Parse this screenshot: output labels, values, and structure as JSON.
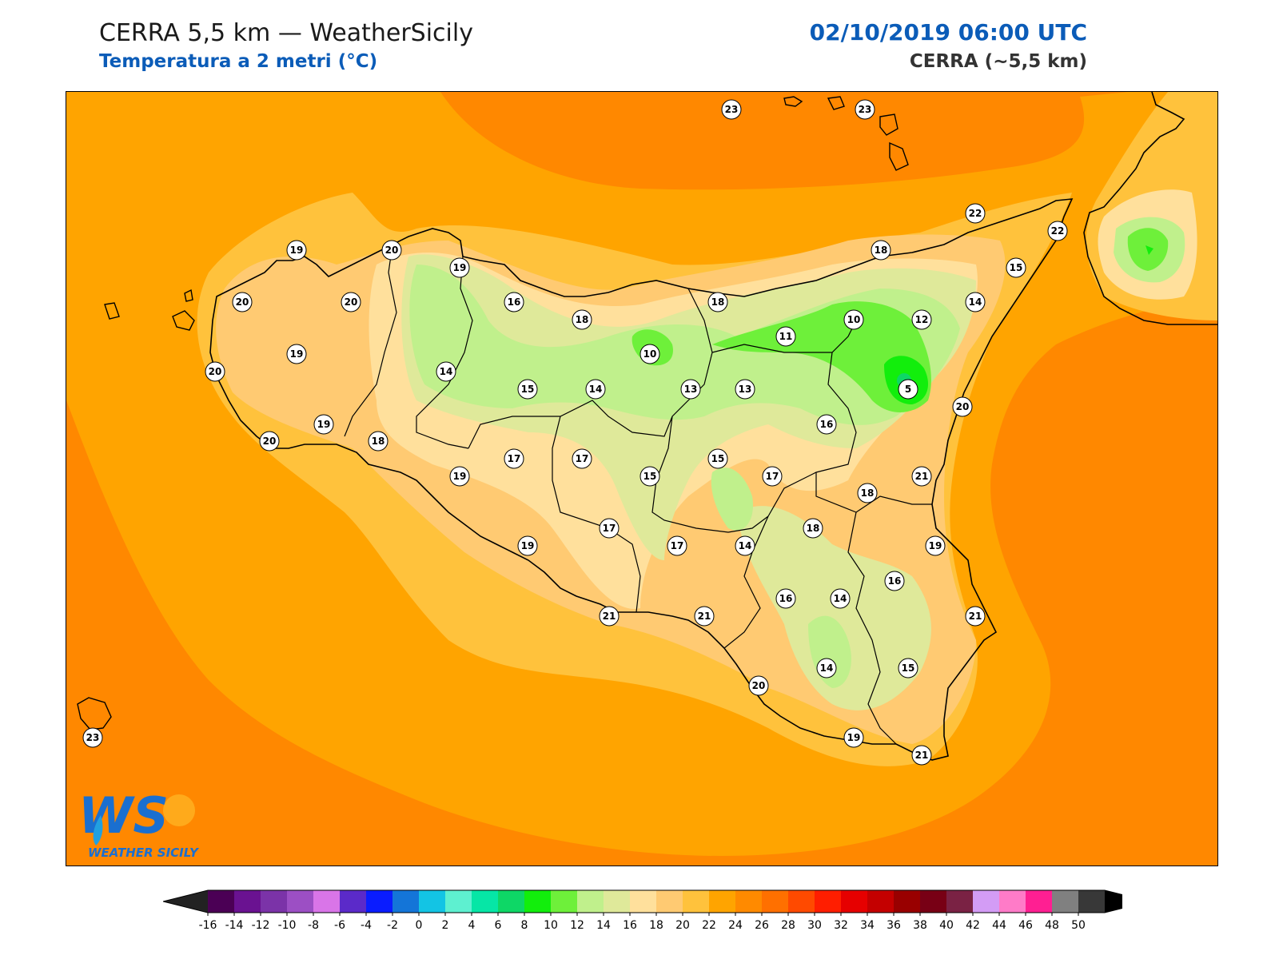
{
  "header": {
    "title_left": "CERRA 5,5 km — WeatherSicily",
    "subtitle_left": "Temperatura a 2 metri (°C)",
    "title_right": "02/10/2019 06:00 UTC",
    "subtitle_right": "CERRA (~5,5 km)"
  },
  "logo": {
    "initials": "WS",
    "text": "WEATHER SICILY"
  },
  "stations": [
    {
      "v": "23"
    },
    {
      "v": "23"
    },
    {
      "v": "22"
    },
    {
      "v": "22"
    },
    {
      "v": "18"
    },
    {
      "v": "15"
    },
    {
      "v": "14"
    },
    {
      "v": "12"
    },
    {
      "v": "10"
    },
    {
      "v": "11"
    },
    {
      "v": "5"
    },
    {
      "v": "20"
    },
    {
      "v": "16"
    },
    {
      "v": "21"
    },
    {
      "v": "18"
    },
    {
      "v": "18"
    },
    {
      "v": "19"
    },
    {
      "v": "16"
    },
    {
      "v": "14"
    },
    {
      "v": "21"
    },
    {
      "v": "15"
    },
    {
      "v": "14"
    },
    {
      "v": "19"
    },
    {
      "v": "21"
    },
    {
      "v": "20"
    },
    {
      "v": "16"
    },
    {
      "v": "14"
    },
    {
      "v": "17"
    },
    {
      "v": "18"
    },
    {
      "v": "15"
    },
    {
      "v": "13"
    },
    {
      "v": "13"
    },
    {
      "v": "10"
    },
    {
      "v": "18"
    },
    {
      "v": "16"
    },
    {
      "v": "14"
    },
    {
      "v": "15"
    },
    {
      "v": "17"
    },
    {
      "v": "17"
    },
    {
      "v": "15"
    },
    {
      "v": "17"
    },
    {
      "v": "21"
    },
    {
      "v": "21"
    },
    {
      "v": "19"
    },
    {
      "v": "19"
    },
    {
      "v": "17"
    },
    {
      "v": "14"
    },
    {
      "v": "19"
    },
    {
      "v": "20"
    },
    {
      "v": "20"
    },
    {
      "v": "20"
    },
    {
      "v": "19"
    },
    {
      "v": "19"
    },
    {
      "v": "20"
    },
    {
      "v": "19"
    },
    {
      "v": "18"
    },
    {
      "v": "20"
    },
    {
      "v": "23"
    }
  ],
  "colorbar": {
    "labels": [
      "-16",
      "-14",
      "-12",
      "-10",
      "-8",
      "-6",
      "-4",
      "-2",
      "0",
      "2",
      "4",
      "6",
      "8",
      "10",
      "12",
      "14",
      "16",
      "18",
      "20",
      "22",
      "24",
      "26",
      "28",
      "30",
      "32",
      "34",
      "36",
      "38",
      "40",
      "42",
      "44",
      "46",
      "48",
      "50"
    ],
    "colors": [
      "#4b0055",
      "#6a1291",
      "#7b33a8",
      "#9c4fc4",
      "#d975e8",
      "#5b2ac9",
      "#0a1cff",
      "#1475d8",
      "#13c4e4",
      "#5ef0d0",
      "#06e6a6",
      "#0ed766",
      "#12ee0c",
      "#6ef03a",
      "#c0f08c",
      "#dfe99a",
      "#ffe09c",
      "#ffca72",
      "#ffc23c",
      "#ffa400",
      "#ff8a00",
      "#ff7000",
      "#ff4a00",
      "#ff1e00",
      "#e60000",
      "#c40000",
      "#990000",
      "#780015",
      "#7a2244",
      "#d39cf5",
      "#ff7bc8",
      "#ff1f92",
      "#808080",
      "#383838"
    ],
    "under_color": "#222222",
    "over_color": "#000000"
  }
}
